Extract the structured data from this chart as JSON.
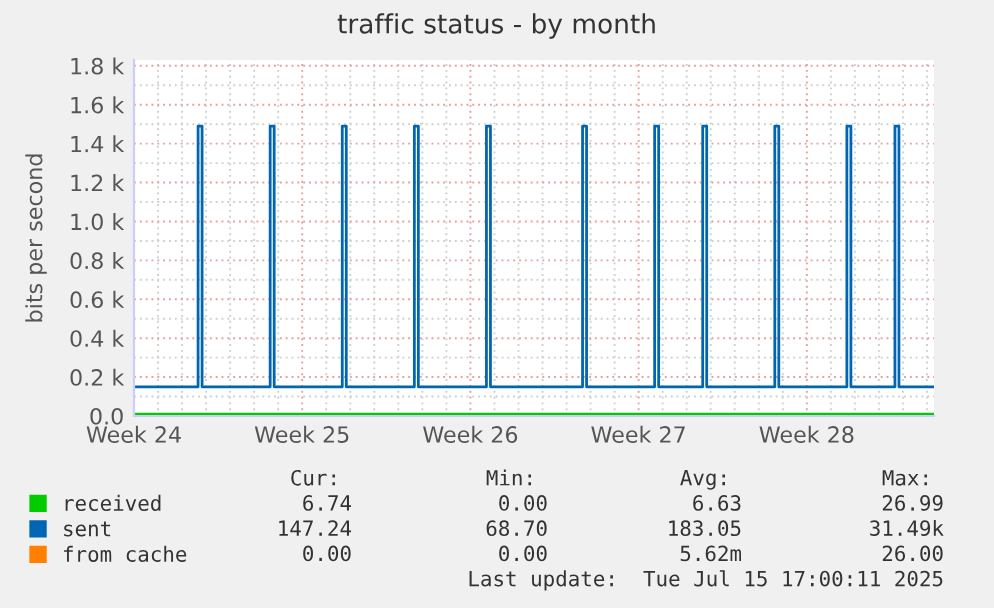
{
  "chart_data": {
    "type": "line",
    "title": "traffic status - by month",
    "ylabel": "bits per second",
    "xlim": [
      "2025-06-09T00:00",
      "2025-07-12T07:00"
    ],
    "xticks": [
      {
        "value": "2025-06-09",
        "label": "Week 24"
      },
      {
        "value": "2025-06-16",
        "label": "Week 25"
      },
      {
        "value": "2025-06-23",
        "label": "Week 26"
      },
      {
        "value": "2025-06-30",
        "label": "Week 27"
      },
      {
        "value": "2025-07-07",
        "label": "Week 28"
      }
    ],
    "ylim": [
      0,
      1830
    ],
    "yticks": [
      {
        "value": 0,
        "label": "0.0"
      },
      {
        "value": 200,
        "label": "0.2 k"
      },
      {
        "value": 400,
        "label": "0.4 k"
      },
      {
        "value": 600,
        "label": "0.6 k"
      },
      {
        "value": 800,
        "label": "0.8 k"
      },
      {
        "value": 1000,
        "label": "1.0 k"
      },
      {
        "value": 1200,
        "label": "1.2 k"
      },
      {
        "value": 1400,
        "label": "1.4 k"
      },
      {
        "value": 1600,
        "label": "1.6 k"
      },
      {
        "value": 1800,
        "label": "1.8 k"
      }
    ],
    "grid": true,
    "legend": "bottom",
    "marker": "none",
    "line_style": "solid",
    "series": [
      {
        "name": "received",
        "color": "#00cc00",
        "x": [
          "2025-06-09T00:00",
          "2025-07-12T07:00"
        ],
        "values": [
          10,
          10
        ]
      },
      {
        "name": "sent",
        "color": "#0066b3",
        "x": [
          "2025-06-09T00:00",
          "2025-06-11T16:00",
          "2025-06-11T16:00",
          "2025-06-11T20:00",
          "2025-06-11T20:00",
          "2025-06-14T16:00",
          "2025-06-14T16:00",
          "2025-06-14T20:00",
          "2025-06-14T20:00",
          "2025-06-17T16:00",
          "2025-06-17T16:00",
          "2025-06-17T20:00",
          "2025-06-17T20:00",
          "2025-06-20T16:00",
          "2025-06-20T16:00",
          "2025-06-20T20:00",
          "2025-06-20T20:00",
          "2025-06-23T16:00",
          "2025-06-23T16:00",
          "2025-06-23T20:00",
          "2025-06-23T20:00",
          "2025-06-27T16:00",
          "2025-06-27T16:00",
          "2025-06-27T20:00",
          "2025-06-27T20:00",
          "2025-06-30T16:00",
          "2025-06-30T16:00",
          "2025-06-30T20:00",
          "2025-06-30T20:00",
          "2025-07-02T16:00",
          "2025-07-02T16:00",
          "2025-07-02T20:00",
          "2025-07-02T20:00",
          "2025-07-05T16:00",
          "2025-07-05T16:00",
          "2025-07-05T20:00",
          "2025-07-05T20:00",
          "2025-07-08T16:00",
          "2025-07-08T16:00",
          "2025-07-08T20:00",
          "2025-07-08T20:00",
          "2025-07-10T16:00",
          "2025-07-10T16:00",
          "2025-07-10T20:00",
          "2025-07-10T20:00",
          "2025-07-12T07:00"
        ],
        "values": [
          150,
          150,
          1490,
          1490,
          150,
          150,
          1490,
          1490,
          150,
          150,
          1490,
          1490,
          150,
          150,
          1490,
          1490,
          150,
          150,
          1490,
          1490,
          150,
          150,
          1490,
          1490,
          150,
          150,
          1490,
          1490,
          150,
          150,
          1490,
          1490,
          150,
          150,
          1490,
          1490,
          150,
          150,
          1490,
          1490,
          150,
          150,
          1490,
          1490,
          150,
          150
        ]
      },
      {
        "name": "from cache",
        "color": "#ff8000"
      }
    ],
    "annotations": [
      "Cur:",
      "Min:",
      "Avg:",
      "Max:",
      "6.74",
      "0.00",
      "6.63",
      "26.99",
      "147.24",
      "68.70",
      "183.05",
      "31.49k",
      "0.00",
      "0.00",
      "5.62m",
      "26.00",
      "Last update:  Tue Jul 15 17:00:11 2025"
    ]
  }
}
